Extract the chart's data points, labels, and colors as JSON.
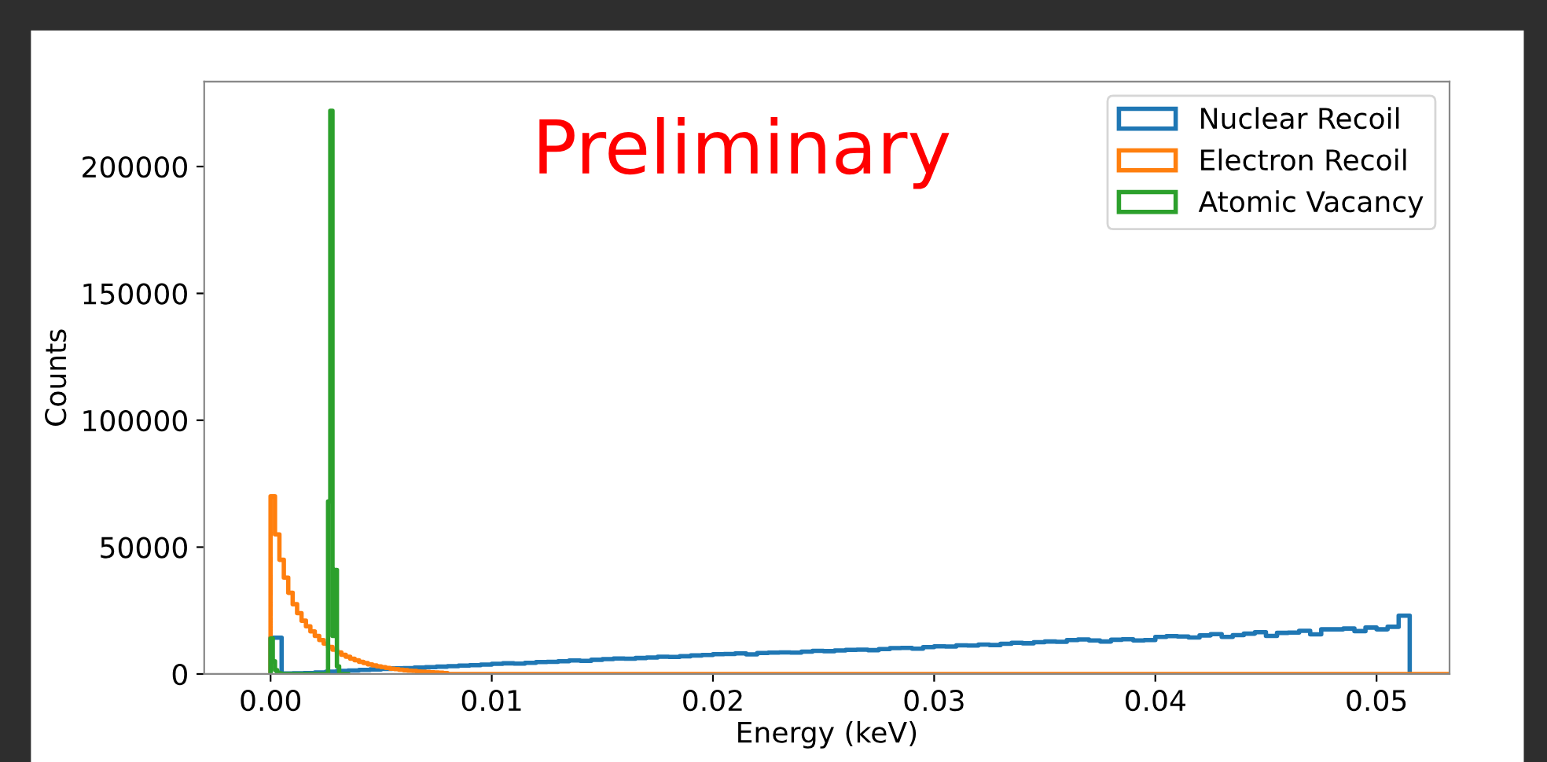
{
  "chart_data": {
    "type": "step",
    "xlabel": "Energy (keV)",
    "ylabel": "Counts",
    "annotations": [
      "Preliminary"
    ],
    "xlim": [
      -0.003,
      0.0533
    ],
    "xticks": [
      {
        "value": 0,
        "label": "0.00"
      },
      {
        "value": 0.01,
        "label": "0.01"
      },
      {
        "value": 0.02,
        "label": "0.02"
      },
      {
        "value": 0.03,
        "label": "0.03"
      },
      {
        "value": 0.04,
        "label": "0.04"
      },
      {
        "value": 0.05,
        "label": "0.05"
      }
    ],
    "ylim": [
      0,
      233500
    ],
    "yticks": [
      0,
      50000,
      100000,
      150000,
      200000
    ],
    "grid": false,
    "legend": "top right",
    "series": [
      {
        "name": "Nuclear Recoil",
        "color": "#1f77b4",
        "x": [
          0,
          0,
          0.0005,
          0.001,
          0.0015,
          0.002,
          0.0025,
          0.003,
          0.0035,
          0.004,
          0.0045,
          0.005,
          0.0055,
          0.006,
          0.0065,
          0.007,
          0.0075,
          0.008,
          0.0085,
          0.009,
          0.0095,
          0.01,
          0.0105,
          0.011,
          0.0115,
          0.012,
          0.0125,
          0.013,
          0.0135,
          0.014,
          0.0145,
          0.015,
          0.0155,
          0.016,
          0.0165,
          0.017,
          0.0175,
          0.018,
          0.0185,
          0.019,
          0.0195,
          0.02,
          0.0205,
          0.021,
          0.0215,
          0.022,
          0.0225,
          0.023,
          0.0235,
          0.024,
          0.0245,
          0.025,
          0.0255,
          0.026,
          0.0265,
          0.027,
          0.0275,
          0.028,
          0.0285,
          0.029,
          0.0295,
          0.03,
          0.0305,
          0.031,
          0.0315,
          0.032,
          0.0325,
          0.033,
          0.0335,
          0.034,
          0.0345,
          0.035,
          0.0355,
          0.036,
          0.0365,
          0.037,
          0.0375,
          0.038,
          0.0385,
          0.039,
          0.0395,
          0.04,
          0.0405,
          0.041,
          0.0415,
          0.042,
          0.0425,
          0.043,
          0.0435,
          0.044,
          0.0445,
          0.045,
          0.0455,
          0.046,
          0.0465,
          0.047,
          0.0475,
          0.048,
          0.0485,
          0.049,
          0.0495,
          0.05,
          0.0505,
          0.051,
          0.0515
        ],
        "values": [
          0,
          14300,
          200,
          300,
          400,
          600,
          900,
          1200,
          1400,
          1600,
          1800,
          2000,
          2200,
          2300,
          2500,
          2700,
          2900,
          3100,
          3300,
          3500,
          3700,
          4000,
          4200,
          4100,
          4400,
          4700,
          4800,
          5000,
          5300,
          5200,
          5600,
          5900,
          6100,
          6000,
          6300,
          6500,
          6800,
          6700,
          7000,
          7300,
          7500,
          7800,
          7900,
          8100,
          7700,
          8300,
          8400,
          8500,
          8400,
          8800,
          9100,
          9000,
          9300,
          9500,
          9600,
          9400,
          9800,
          10200,
          10300,
          10000,
          10600,
          10900,
          10800,
          11300,
          11200,
          11600,
          11400,
          11900,
          12300,
          12100,
          12500,
          12800,
          12700,
          13400,
          13600,
          13200,
          12800,
          13500,
          13700,
          13200,
          13400,
          14600,
          14900,
          14800,
          14400,
          15200,
          15700,
          14600,
          15300,
          15900,
          16500,
          15000,
          16200,
          16300,
          17000,
          15600,
          17600,
          17600,
          17900,
          16900,
          18300,
          17600,
          18600,
          23000,
          0
        ]
      },
      {
        "name": "Electron Recoil",
        "color": "#ff7f0e",
        "x": [
          0,
          0,
          0.0002,
          0.0004,
          0.0006,
          0.0008,
          0.001,
          0.0012,
          0.0014,
          0.0016,
          0.0018,
          0.002,
          0.0022,
          0.0024,
          0.0026,
          0.0028,
          0.003,
          0.0032,
          0.0034,
          0.0036,
          0.0038,
          0.004,
          0.0042,
          0.0044,
          0.0046,
          0.0048,
          0.005,
          0.0052,
          0.0054,
          0.0056,
          0.0058,
          0.006,
          0.0062,
          0.0064,
          0.0066,
          0.0068,
          0.007,
          0.0072,
          0.0074,
          0.0076,
          0.0078,
          0.008,
          0.0533
        ],
        "values": [
          0,
          70000,
          55000,
          45000,
          38000,
          32000,
          27500,
          24000,
          21000,
          18800,
          16800,
          15000,
          13400,
          12000,
          10700,
          9600,
          8500,
          7600,
          6800,
          6000,
          5400,
          4800,
          4300,
          3800,
          3400,
          3000,
          2700,
          2400,
          2100,
          1900,
          1700,
          1500,
          1300,
          1200,
          1000,
          900,
          800,
          700,
          600,
          500,
          400,
          0,
          0
        ]
      },
      {
        "name": "Atomic Vacancy",
        "color": "#2ca02c",
        "x": [
          0,
          0,
          0.0001,
          0.0002,
          0.0003,
          0.0004,
          0.0005,
          0.0006,
          0.0007,
          0.0008,
          0.0009,
          0.001,
          0.0011,
          0.0012,
          0.0013,
          0.0014,
          0.0015,
          0.0016,
          0.0017,
          0.0018,
          0.0019,
          0.002,
          0.0021,
          0.0022,
          0.0023,
          0.0024,
          0.0025,
          0.0026,
          0.0027,
          0.0028,
          0.0029,
          0.003,
          0.0031,
          0.0032,
          0.0033,
          0.0034,
          0.0035
        ],
        "values": [
          0,
          14000,
          5000,
          1500,
          500,
          200,
          0,
          0,
          0,
          0,
          0,
          0,
          0,
          0,
          0,
          0,
          0,
          0,
          0,
          0,
          0,
          0,
          0,
          0,
          0,
          0,
          0,
          68000,
          222000,
          15000,
          41000,
          3000,
          0,
          0,
          0,
          0,
          0
        ]
      }
    ]
  }
}
